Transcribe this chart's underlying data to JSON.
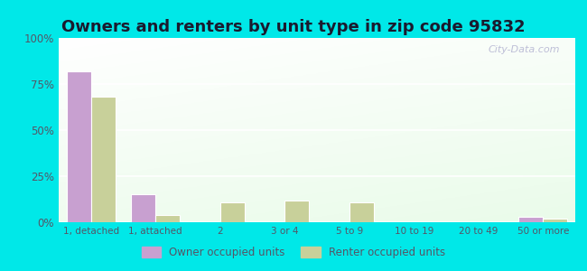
{
  "title": "Owners and renters by unit type in zip code 95832",
  "categories": [
    "1, detached",
    "1, attached",
    "2",
    "3 or 4",
    "5 to 9",
    "10 to 19",
    "20 to 49",
    "50 or more"
  ],
  "owner_values": [
    82,
    15,
    0,
    0,
    0,
    0,
    0,
    3
  ],
  "renter_values": [
    68,
    4,
    11,
    12,
    11,
    0,
    0,
    2
  ],
  "owner_color": "#c8a0d0",
  "renter_color": "#c8d09a",
  "background_top_left": "#f0faf0",
  "background_bottom_right": "#d8f0d0",
  "outer_background": "#00e8e8",
  "title_fontsize": 13,
  "title_color": "#1a1a2e",
  "legend_labels": [
    "Owner occupied units",
    "Renter occupied units"
  ],
  "ylim": [
    0,
    100
  ],
  "yticks": [
    0,
    25,
    50,
    75,
    100
  ],
  "ytick_labels": [
    "0%",
    "25%",
    "50%",
    "75%",
    "100%"
  ],
  "watermark": "City-Data.com",
  "tick_label_color": "#555566",
  "grid_color": "#ffffff"
}
